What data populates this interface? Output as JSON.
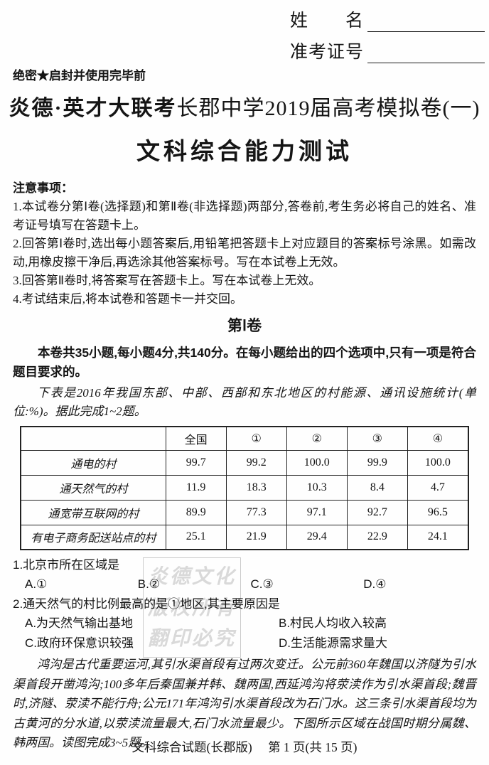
{
  "header": {
    "name_label": "姓　　名",
    "id_label": "准考证号",
    "secrecy": "绝密★启封并使用完毕前"
  },
  "title": {
    "brand": "炎德·英才大联考",
    "session": "长郡中学2019届高考模拟卷(一)",
    "main": "文科综合能力测试"
  },
  "notes": {
    "heading": "注意事项：",
    "items": [
      "1.本试卷分第Ⅰ卷(选择题)和第Ⅱ卷(非选择题)两部分,答卷前,考生务必将自己的姓名、准考证号填写在答题卡上。",
      "2.回答第Ⅰ卷时,选出每小题答案后,用铅笔把答题卡上对应题目的答案标号涂黑。如需改动,用橡皮擦干净后,再选涂其他答案标号。写在本试卷上无效。",
      "3.回答第Ⅱ卷时,将答案写在答题卡上。写在本试卷上无效。",
      "4.考试结束后,将本试卷和答题卡一并交回。"
    ]
  },
  "section": {
    "title": "第Ⅰ卷",
    "intro": "本卷共35小题,每小题4分,共140分。在每小题给出的四个选项中,只有一项是符合题目要求的。",
    "table_intro": "下表是2016年我国东部、中部、西部和东北地区的村能源、通讯设施统计(单位:%)。据此完成1~2题。"
  },
  "table": {
    "headers": [
      "",
      "全国",
      "①",
      "②",
      "③",
      "④"
    ],
    "rows": [
      [
        "通电的村",
        "99.7",
        "99.2",
        "100.0",
        "99.9",
        "100.0"
      ],
      [
        "通天然气的村",
        "11.9",
        "18.3",
        "10.3",
        "8.4",
        "4.7"
      ],
      [
        "通宽带互联网的村",
        "89.9",
        "77.3",
        "97.1",
        "92.7",
        "96.5"
      ],
      [
        "有电子商务配送站点的村",
        "25.1",
        "21.9",
        "29.4",
        "22.9",
        "24.1"
      ]
    ]
  },
  "questions": [
    {
      "text": "1.北京市所在区域是",
      "options": [
        "A.①",
        "B.②",
        "C.③",
        "D.④"
      ]
    },
    {
      "text": "2.通天然气的村比例最高的是①地区,其主要原因是",
      "options": [
        "A.为天然气输出基地",
        "B.村民人均收入较高",
        "C.政府环保意识较强",
        "D.生活能源需求量大"
      ]
    }
  ],
  "passage2": "鸿沟是古代重要运河,其引水渠首段有过两次变迁。公元前360年魏国以济隧为引水渠首段开凿鸿沟;100多年后秦国兼并韩、魏两国,西延鸿沟将荥渎作为引水渠首段;魏晋时,济隧、荥渎不能行舟;公元171年鸿沟引水渠首段改为石门水。这三条引水渠首段均为古黄河的分水道,以荥渎流量最大,石门水流量最少。下图所示区域在战国时期分属魏、韩两国。读图完成3~5题。",
  "watermark": {
    "lines": [
      "炎德文化",
      "版权所有",
      "翻印必究"
    ]
  },
  "footer": {
    "left": "文科综合试题(长郡版)",
    "right": "第 1 页(共 15 页)"
  }
}
